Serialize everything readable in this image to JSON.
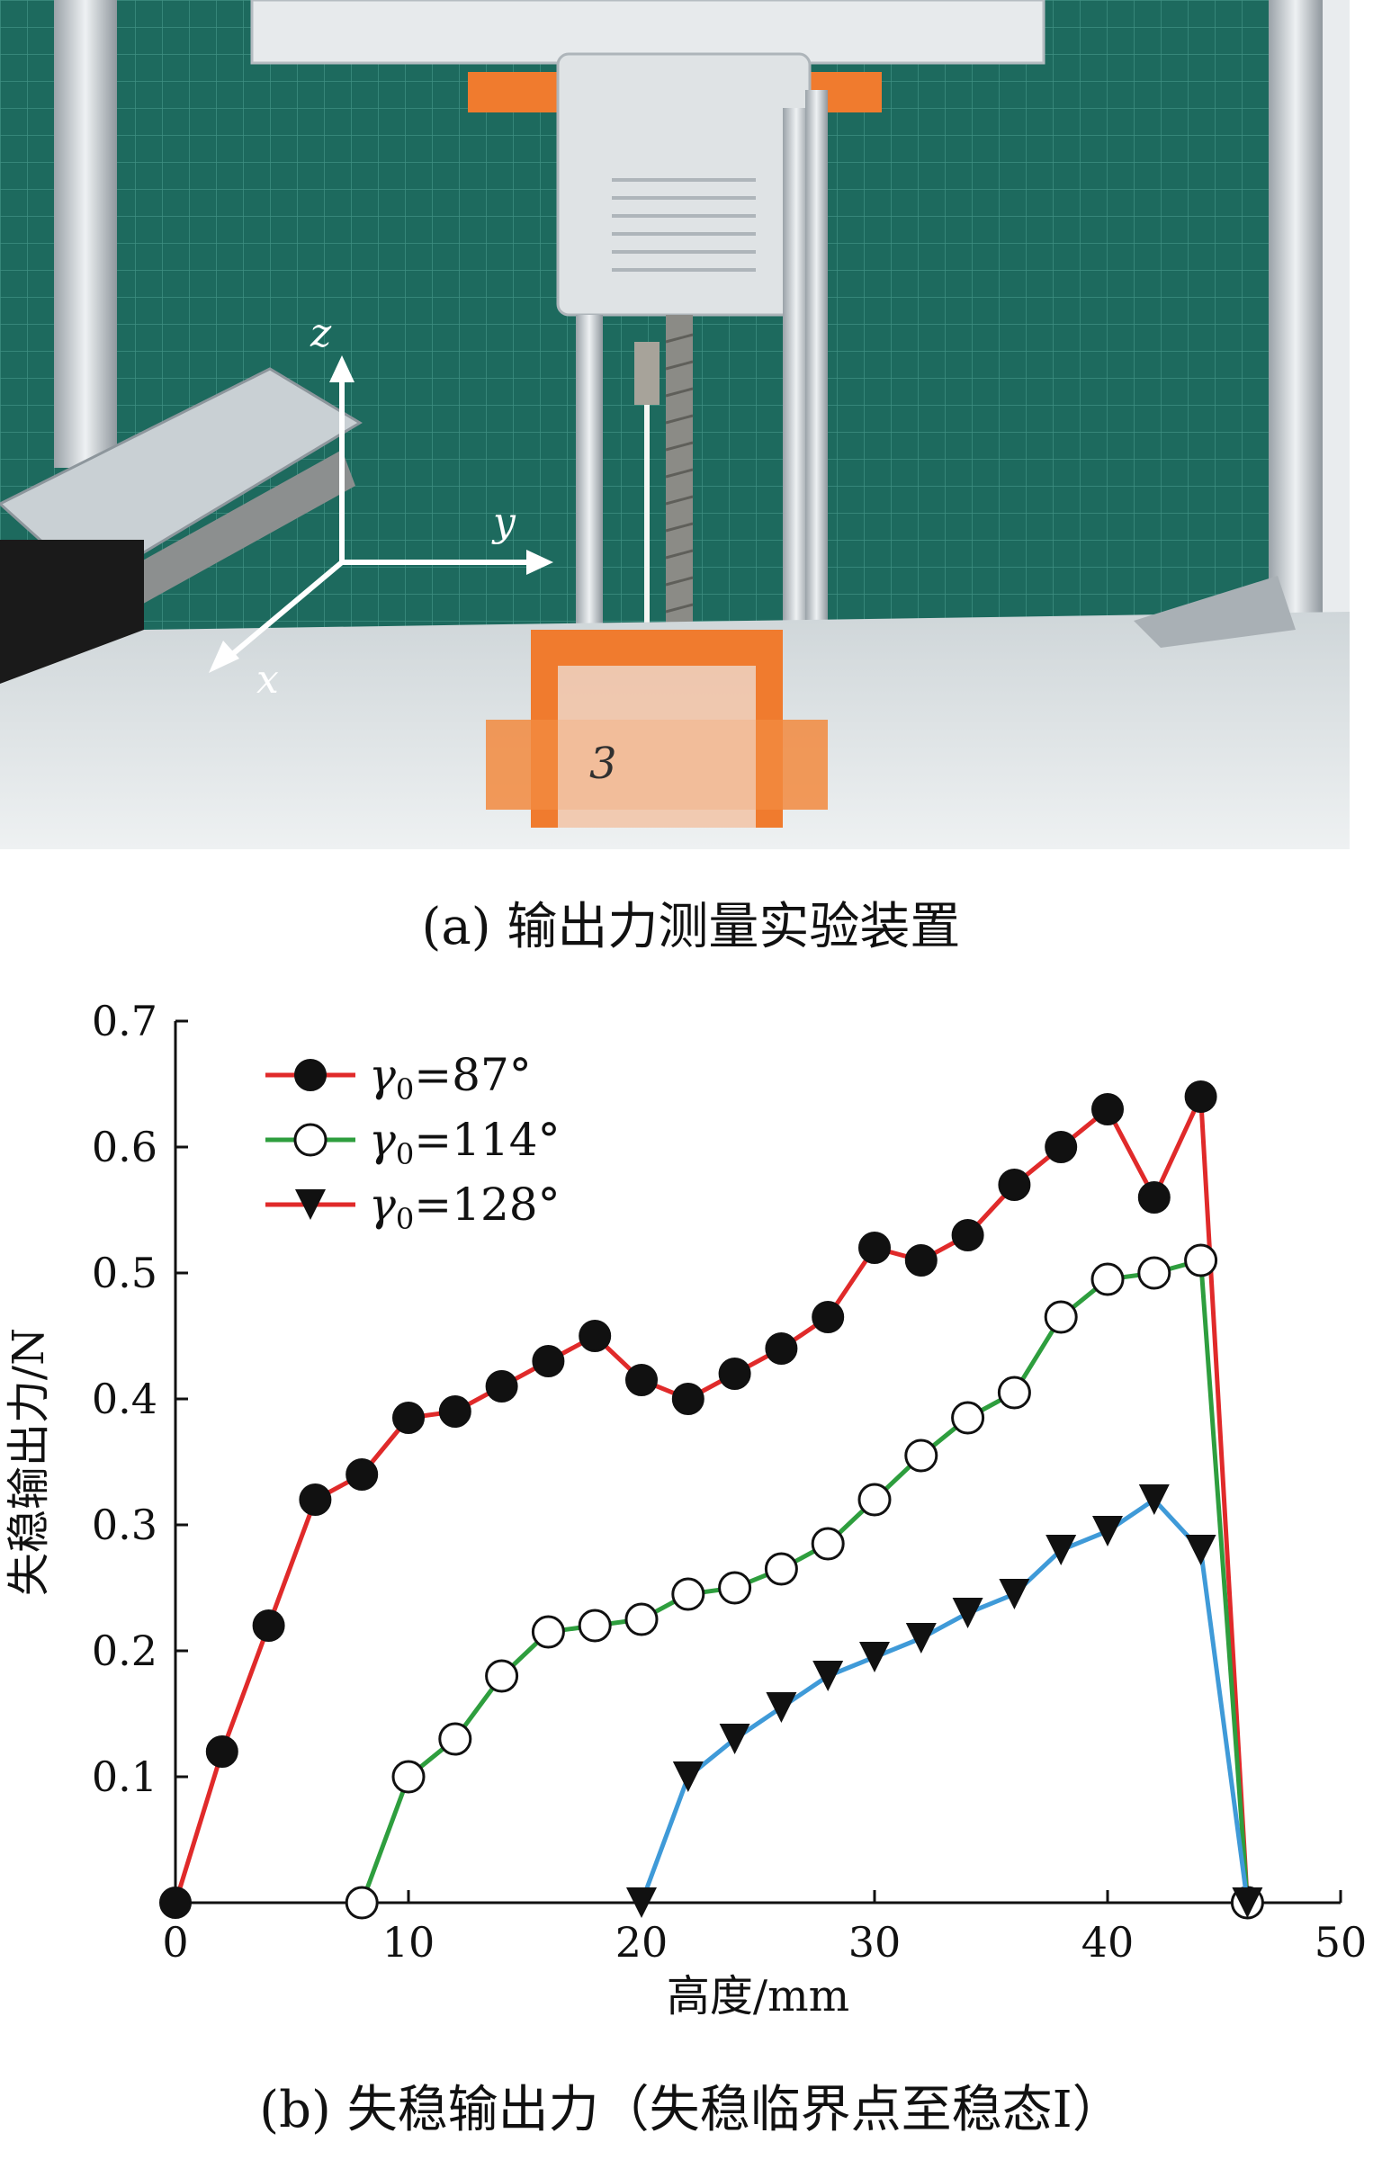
{
  "figure": {
    "photo": {
      "caption": "(a) 输出力测量实验装置",
      "axis_labels": {
        "z": "z",
        "y": "y",
        "x": "x"
      },
      "specimen_mark": "3",
      "colors": {
        "background_mat": "#1c6d60",
        "fixture": "#f07b2e",
        "frame": "#d6d9dc"
      }
    },
    "chart_caption": "(b) 失稳输出力（失稳临界点至稳态I）"
  },
  "chart_data": {
    "type": "line",
    "xlabel": "高度/mm",
    "ylabel": "失稳输出力/N",
    "xlim": [
      0,
      50
    ],
    "ylim": [
      0,
      0.7
    ],
    "xticks": [
      0,
      10,
      20,
      30,
      40,
      50
    ],
    "yticks": [
      0.1,
      0.2,
      0.3,
      0.4,
      0.5,
      0.6,
      0.7
    ],
    "xtick_labels": [
      "0",
      "10",
      "20",
      "30",
      "40",
      "50"
    ],
    "ytick_labels": [
      "0.1",
      "0.2",
      "0.3",
      "0.4",
      "0.5",
      "0.6",
      "0.7"
    ],
    "grid": false,
    "legend_position": "top-left",
    "series": [
      {
        "name": "γ0=87°",
        "label_main": "γ",
        "label_sub": "0",
        "label_rest": "=87°",
        "color": "#e02a2a",
        "marker": "filled-circle",
        "x": [
          0,
          2,
          4,
          6,
          8,
          10,
          12,
          14,
          16,
          18,
          20,
          22,
          24,
          26,
          28,
          30,
          32,
          34,
          36,
          38,
          40,
          42,
          44,
          46
        ],
        "y": [
          0,
          0.12,
          0.22,
          0.32,
          0.34,
          0.385,
          0.39,
          0.41,
          0.43,
          0.45,
          0.415,
          0.4,
          0.42,
          0.44,
          0.465,
          0.52,
          0.51,
          0.53,
          0.57,
          0.6,
          0.63,
          0.56,
          0.64,
          0
        ]
      },
      {
        "name": "γ0=114°",
        "label_main": "γ",
        "label_sub": "0",
        "label_rest": "=114°",
        "color": "#2e9e3e",
        "marker": "open-circle",
        "x": [
          8,
          10,
          12,
          14,
          16,
          18,
          20,
          22,
          24,
          26,
          28,
          30,
          32,
          34,
          36,
          38,
          40,
          42,
          44,
          46
        ],
        "y": [
          0,
          0.1,
          0.13,
          0.18,
          0.215,
          0.22,
          0.225,
          0.245,
          0.25,
          0.265,
          0.285,
          0.32,
          0.355,
          0.385,
          0.405,
          0.465,
          0.495,
          0.5,
          0.51,
          0
        ]
      },
      {
        "name": "γ0=128°",
        "label_main": "γ",
        "label_sub": "0",
        "label_rest": "=128°",
        "color": "#3f9ad8",
        "legend_line_color": "#e02a2a",
        "marker": "filled-down-triangle",
        "x": [
          20,
          22,
          24,
          26,
          28,
          30,
          32,
          34,
          36,
          38,
          40,
          42,
          44,
          46
        ],
        "y": [
          0,
          0.1,
          0.13,
          0.155,
          0.18,
          0.195,
          0.21,
          0.23,
          0.245,
          0.28,
          0.295,
          0.32,
          0.28,
          0
        ]
      }
    ]
  }
}
